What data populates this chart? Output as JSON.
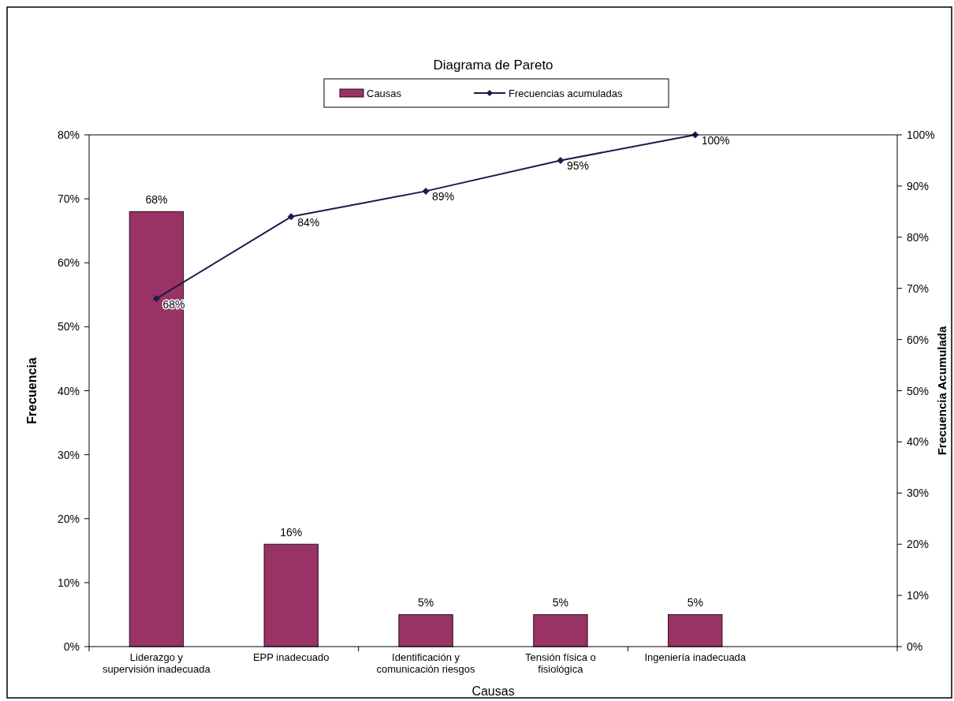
{
  "chart_data": {
    "type": "bar",
    "title": "Diagrama de Pareto",
    "xlabel": "Causas",
    "ylabel": "Frecuencia",
    "y2label": "Frecuencia Acumulada",
    "categories": [
      "Liderazgo y supervisión inadecuada",
      "EPP inadecuado",
      "Identificación y comunicación riesgos",
      "Tensión física o fisiológica",
      "Ingeniería inadecuada",
      null
    ],
    "series": [
      {
        "name": "Causas",
        "color": "#993366",
        "values": [
          68,
          16,
          5,
          5,
          5,
          null
        ],
        "value_labels": [
          "68%",
          "16%",
          "5%",
          "5%",
          "5%",
          null
        ]
      },
      {
        "name": "Frecuencias acumuladas",
        "type": "line",
        "axis": "y2",
        "color": "#1a1a4e",
        "marker": "diamond",
        "values": [
          68,
          84,
          89,
          95,
          100,
          null
        ],
        "value_labels": [
          "68%",
          "84%",
          "89%",
          "95%",
          "100%",
          null
        ]
      }
    ],
    "ylim": [
      0,
      80
    ],
    "yticks": [
      {
        "value": 0,
        "label": "0%"
      },
      {
        "value": 10,
        "label": "10%"
      },
      {
        "value": 20,
        "label": "20%"
      },
      {
        "value": 30,
        "label": "30%"
      },
      {
        "value": 40,
        "label": "40%"
      },
      {
        "value": 50,
        "label": "50%"
      },
      {
        "value": 60,
        "label": "60%"
      },
      {
        "value": 70,
        "label": "70%"
      },
      {
        "value": 80,
        "label": "80%"
      }
    ],
    "y2lim": [
      0,
      100
    ],
    "y2ticks": [
      {
        "value": 0,
        "label": "0%"
      },
      {
        "value": 10,
        "label": "10%"
      },
      {
        "value": 20,
        "label": "20%"
      },
      {
        "value": 30,
        "label": "30%"
      },
      {
        "value": 40,
        "label": "40%"
      },
      {
        "value": 50,
        "label": "50%"
      },
      {
        "value": 60,
        "label": "60%"
      },
      {
        "value": 70,
        "label": "70%"
      },
      {
        "value": 80,
        "label": "80%"
      },
      {
        "value": 90,
        "label": "90%"
      },
      {
        "value": 100,
        "label": "100%"
      }
    ],
    "legend": "top",
    "grid": false
  }
}
